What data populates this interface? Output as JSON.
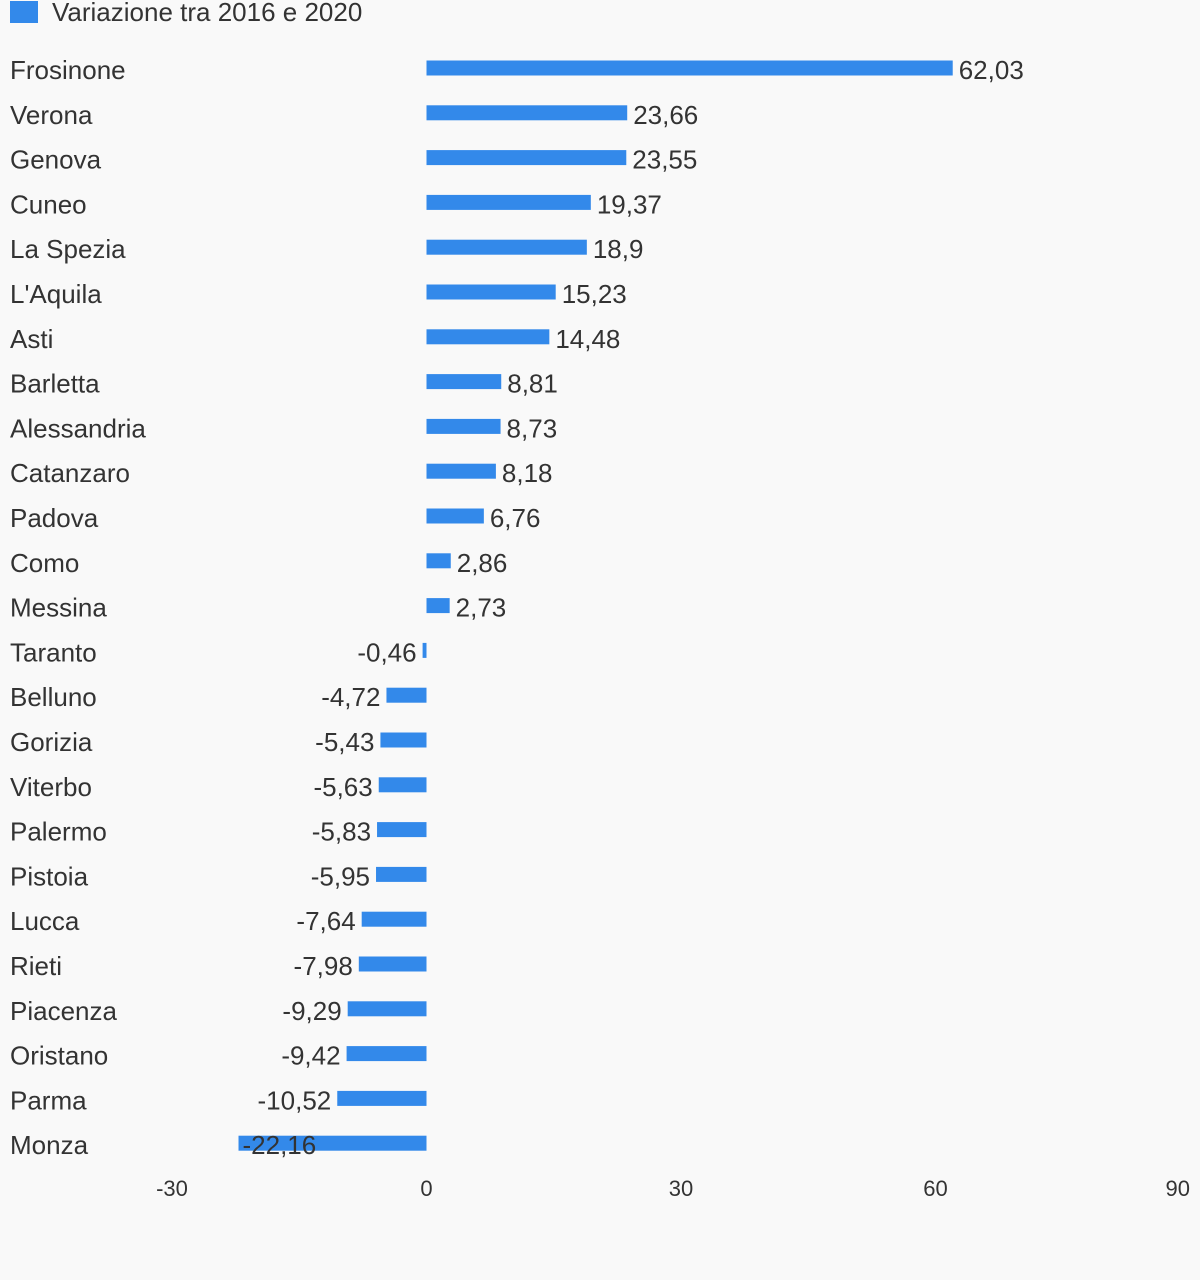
{
  "chart_data": {
    "type": "bar",
    "orientation": "horizontal",
    "series": [
      {
        "name": "Variazione tra 2016 e 2020",
        "color": "#3389ea",
        "values": [
          62.03,
          23.66,
          23.55,
          19.37,
          18.9,
          15.23,
          14.48,
          8.81,
          8.73,
          8.18,
          6.76,
          2.86,
          2.73,
          -0.46,
          -4.72,
          -5.43,
          -5.63,
          -5.83,
          -5.95,
          -7.64,
          -7.98,
          -9.29,
          -9.42,
          -10.52,
          -22.16
        ]
      }
    ],
    "categories": [
      "Frosinone",
      "Verona",
      "Genova",
      "Cuneo",
      "La Spezia",
      "L'Aquila",
      "Asti",
      "Barletta",
      "Alessandria",
      "Catanzaro",
      "Padova",
      "Como",
      "Messina",
      "Taranto",
      "Belluno",
      "Gorizia",
      "Viterbo",
      "Palermo",
      "Pistoia",
      "Lucca",
      "Rieti",
      "Piacenza",
      "Oristano",
      "Parma",
      "Monza"
    ],
    "value_labels": [
      "62,03",
      "23,66",
      "23,55",
      "19,37",
      "18,9",
      "15,23",
      "14,48",
      "8,81",
      "8,73",
      "8,18",
      "6,76",
      "2,86",
      "2,73",
      "-0,46",
      "-4,72",
      "-5,43",
      "-5,63",
      "-5,83",
      "-5,95",
      "-7,64",
      "-7,98",
      "-9,29",
      "-9,42",
      "-10,52",
      "-22,16"
    ],
    "x_ticks": [
      -30,
      0,
      30,
      60,
      90
    ],
    "x_tick_labels": [
      "-30",
      "0",
      "30",
      "60",
      "90"
    ],
    "xlim": [
      -30,
      90
    ],
    "grid": false,
    "legend_position": "top-left",
    "title": "",
    "xlabel": "",
    "ylabel": ""
  }
}
